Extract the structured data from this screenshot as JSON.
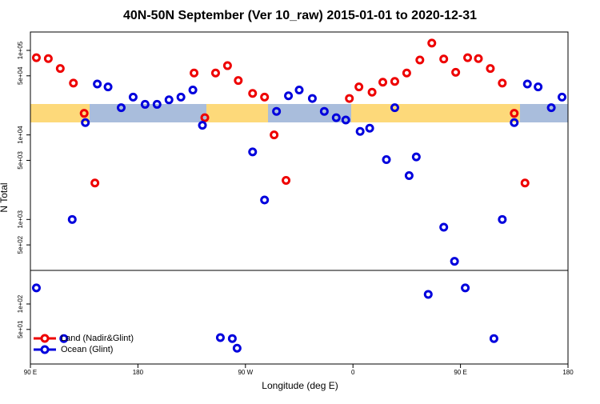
{
  "chart_data": {
    "type": "scatter",
    "title": "40N-50N September (Ver 10_raw)   2015-01-01 to 2020-12-31",
    "x_label": "Longitude (deg E)",
    "y_label": "N Total",
    "log_y": true,
    "xlim": [
      90,
      540
    ],
    "xticks": [
      {
        "value": 90,
        "label": "90 E"
      },
      {
        "value": 180,
        "label": "180"
      },
      {
        "value": 270,
        "label": "90 W"
      },
      {
        "value": 360,
        "label": "0"
      },
      {
        "value": 450,
        "label": "90 E"
      },
      {
        "value": 540,
        "label": "180"
      }
    ],
    "ylim": [
      19.5,
      165000
    ],
    "yticks": [
      {
        "value": 100000,
        "label": "1e+05"
      },
      {
        "value": 50000,
        "label": "5e+04"
      },
      {
        "value": 10000,
        "label": "1e+04"
      },
      {
        "value": 5000,
        "label": "5e+03"
      },
      {
        "value": 1000,
        "label": "1e+03"
      },
      {
        "value": 500,
        "label": "5e+02"
      },
      {
        "value": 100,
        "label": "1e+02"
      },
      {
        "value": 50,
        "label": "5e+01"
      }
    ],
    "legend": "bottom-left",
    "series": [
      {
        "name": "Land (Nadir&Glint)",
        "color": "#ee0000",
        "x": [
          95,
          105,
          115,
          126,
          135,
          144,
          227,
          236,
          245,
          255,
          264,
          276,
          286,
          294,
          304,
          357,
          365,
          376,
          385,
          395,
          405,
          416,
          426,
          436,
          446,
          456,
          465,
          475,
          485,
          495,
          504
        ],
        "values": [
          82000,
          80000,
          61000,
          41000,
          18000,
          2700,
          54000,
          16000,
          54000,
          66000,
          44000,
          31000,
          28000,
          10000,
          2900,
          27000,
          37000,
          32000,
          42000,
          43000,
          54000,
          77000,
          122000,
          79000,
          55000,
          82000,
          80000,
          61000,
          41000,
          18000,
          2700
        ]
      },
      {
        "name": "Ocean (Glint)",
        "color": "#0000dd",
        "x": [
          95,
          118,
          125,
          136,
          146,
          155,
          166,
          176,
          186,
          196,
          206,
          216,
          226,
          234,
          249,
          259,
          263,
          276,
          286,
          296,
          306,
          315,
          326,
          336,
          346,
          354,
          366,
          374,
          388,
          395,
          407,
          413,
          423,
          436,
          445,
          454,
          478,
          485,
          495,
          506,
          515,
          526,
          535
        ],
        "values": [
          155,
          39,
          1000,
          14000,
          40000,
          37000,
          21000,
          28000,
          23000,
          23000,
          26000,
          28000,
          34000,
          13000,
          40,
          39,
          30,
          6300,
          1700,
          19000,
          29000,
          34000,
          27000,
          19000,
          16000,
          15000,
          11000,
          12000,
          5100,
          21000,
          3300,
          5500,
          130,
          810,
          320,
          155,
          39,
          1000,
          14000,
          40000,
          37000,
          21000,
          28000
        ]
      }
    ]
  }
}
